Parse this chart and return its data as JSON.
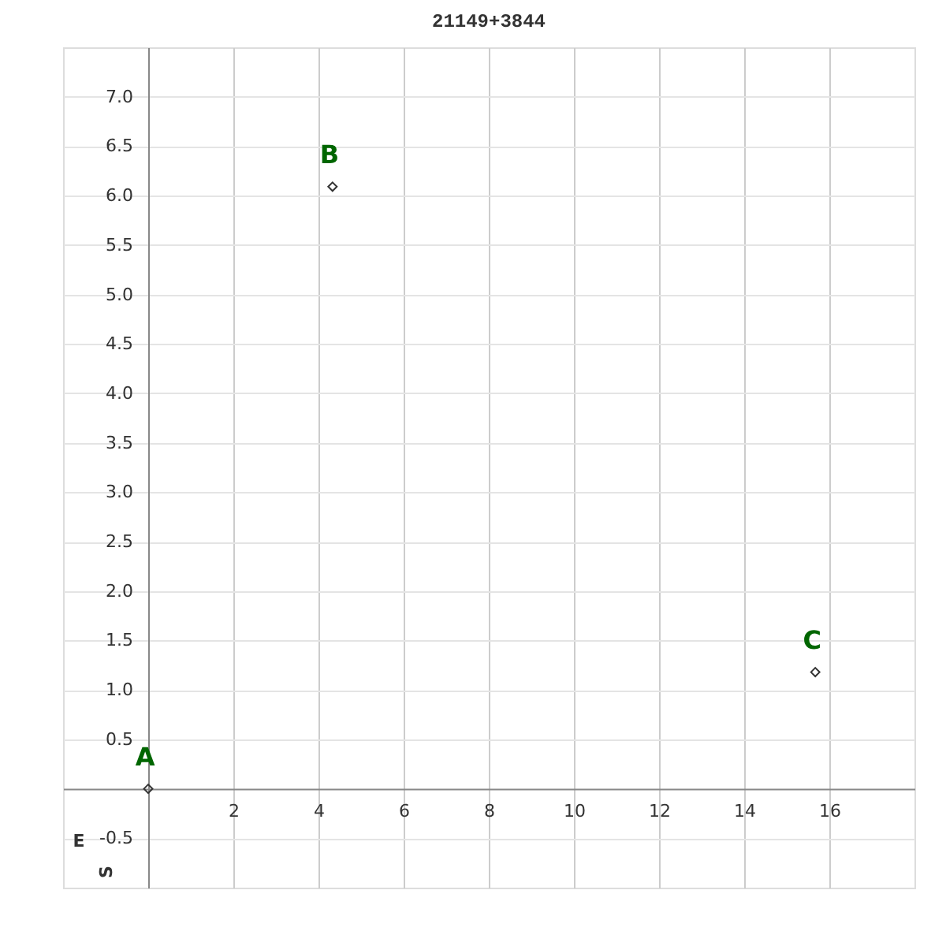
{
  "chart_data": {
    "type": "scatter",
    "title": "21149+3844",
    "series": [
      {
        "color": "#333333",
        "x": [
          0,
          4.33,
          15.67
        ],
        "values": [
          0,
          6.09,
          1.18
        ]
      }
    ],
    "marker": "diamond",
    "xlim": [
      -2,
      18
    ],
    "ylim": [
      -1,
      7.5
    ],
    "xticks": [
      2,
      4,
      6,
      8,
      10,
      12,
      14,
      16
    ],
    "yticks": [
      {
        "value": -0.5,
        "label": "-0.5"
      },
      {
        "value": 0.5,
        "label": "0.5"
      },
      {
        "value": 1,
        "label": "1.0"
      },
      {
        "value": 1.5,
        "label": "1.5"
      },
      {
        "value": 2,
        "label": "2.0"
      },
      {
        "value": 2.5,
        "label": "2.5"
      },
      {
        "value": 3,
        "label": "3.0"
      },
      {
        "value": 3.5,
        "label": "3.5"
      },
      {
        "value": 4,
        "label": "4.0"
      },
      {
        "value": 4.5,
        "label": "4.5"
      },
      {
        "value": 5,
        "label": "5.0"
      },
      {
        "value": 5.5,
        "label": "5.5"
      },
      {
        "value": 6,
        "label": "6.0"
      },
      {
        "value": 6.5,
        "label": "6.5"
      },
      {
        "value": 7,
        "label": "7.0"
      }
    ],
    "grid": true,
    "annotations": [
      {
        "text": "A",
        "x": 0,
        "y": 0
      },
      {
        "text": "B",
        "x": 4.33,
        "y": 6.09
      },
      {
        "text": "C",
        "x": 15.67,
        "y": 1.18
      },
      "E",
      "S"
    ]
  }
}
